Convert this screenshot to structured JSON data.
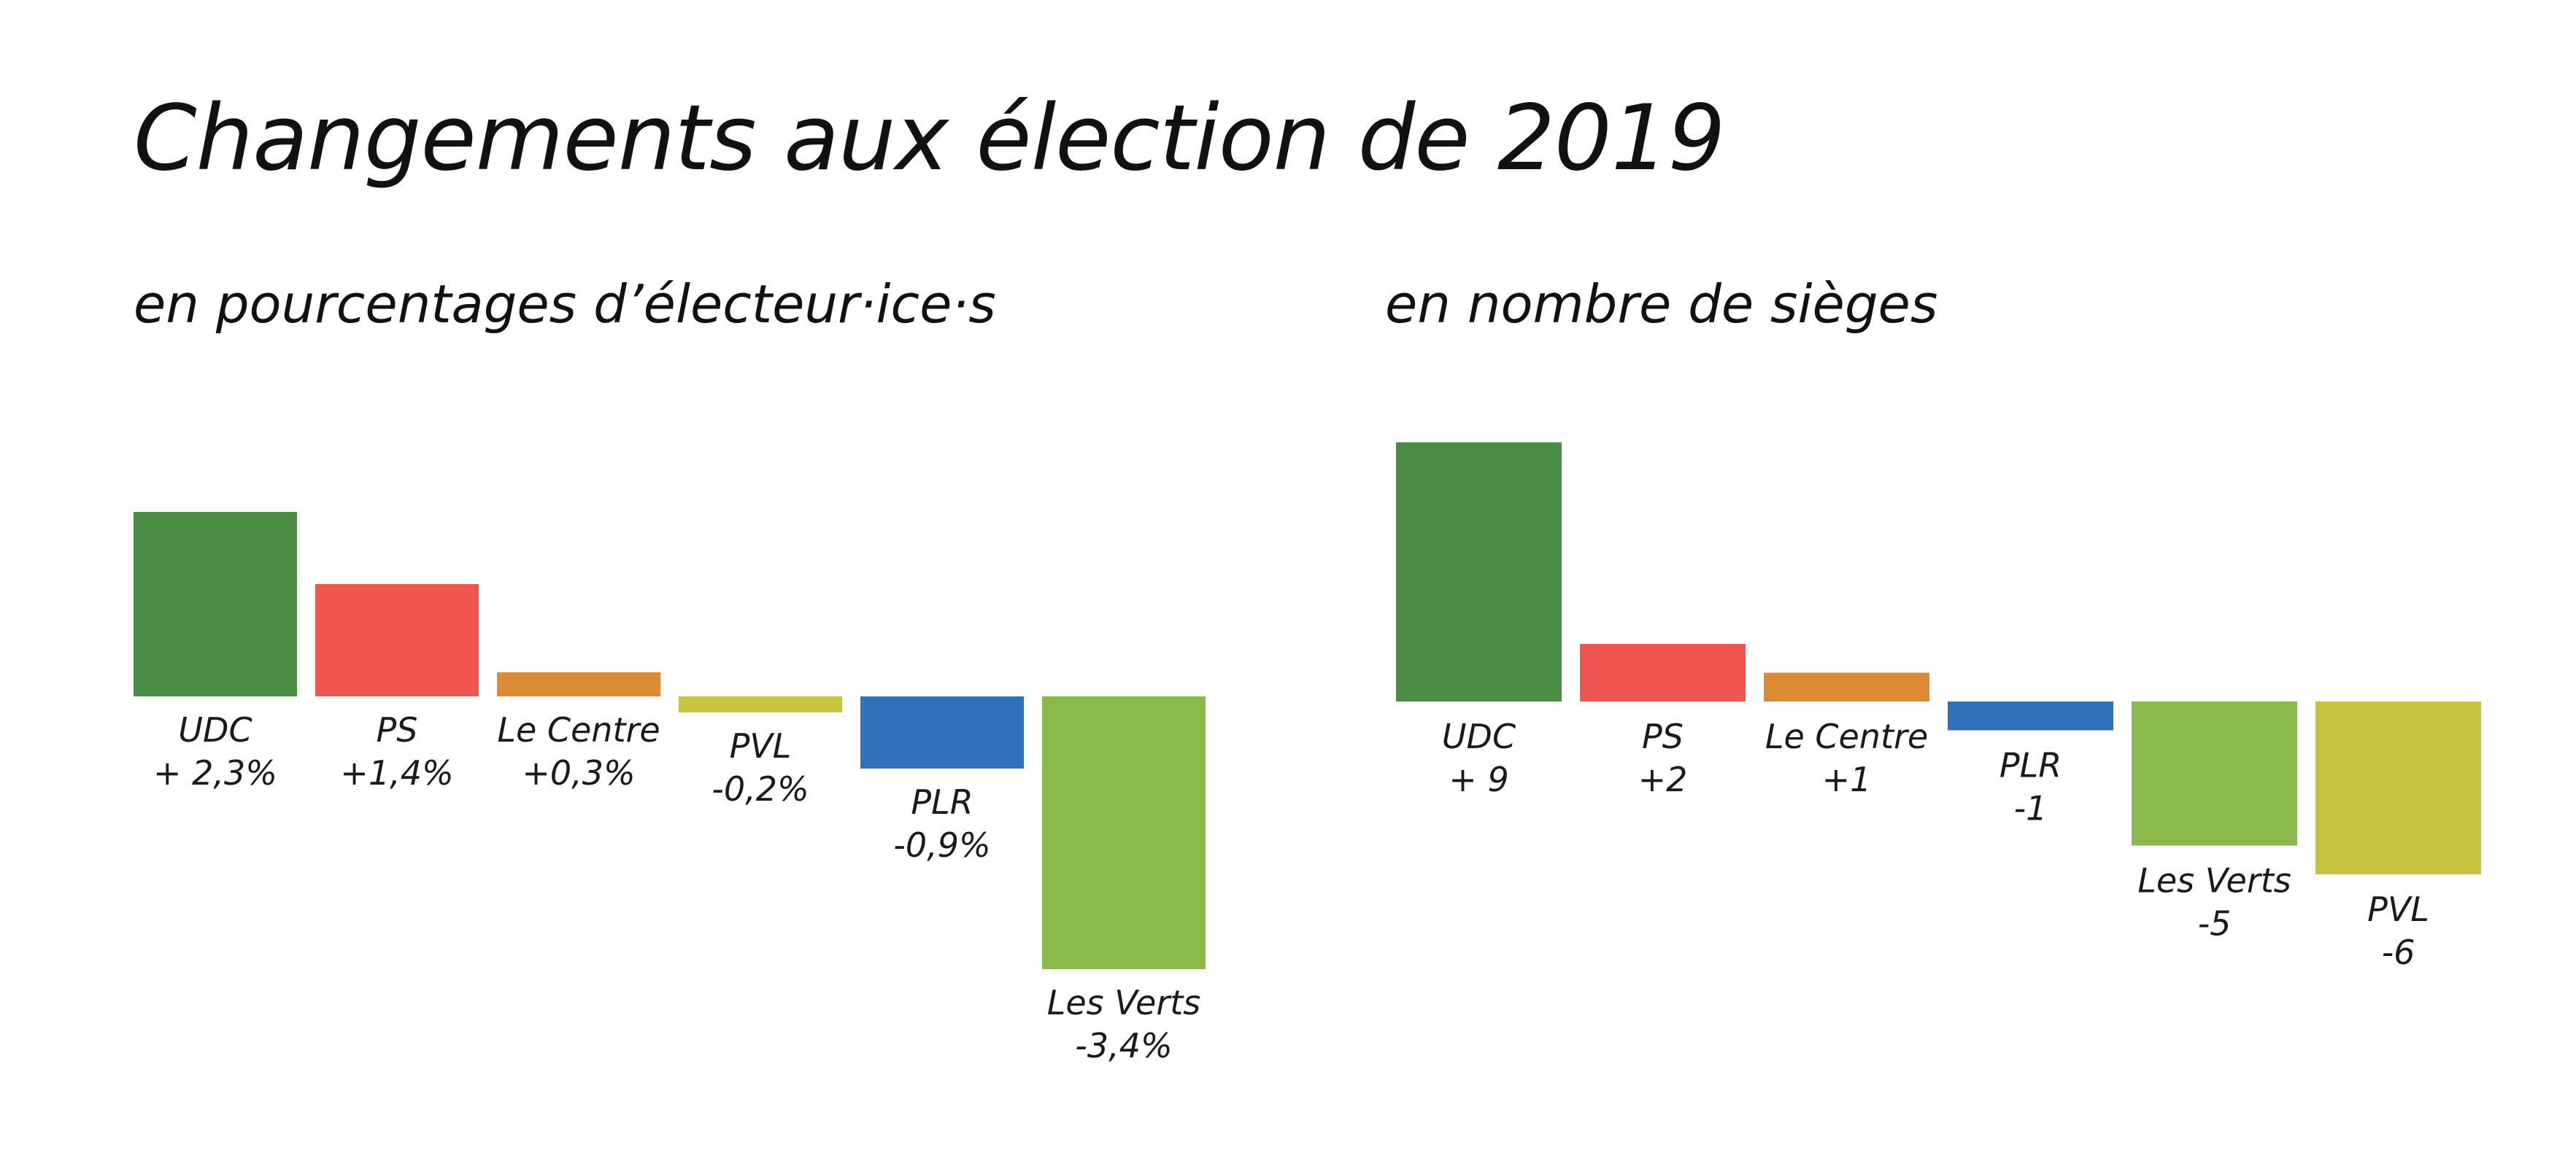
{
  "title": "Changements aux élection de 2019",
  "chart_data": [
    {
      "type": "bar",
      "subtitle": "en pourcentages d’électeur·ice·s",
      "categories": [
        "UDC",
        "PS",
        "Le Centre",
        "PVL",
        "PLR",
        "Les Verts"
      ],
      "values": [
        2.3,
        1.4,
        0.3,
        -0.2,
        -0.9,
        -3.4
      ],
      "value_labels": [
        "+ 2,3%",
        "+1,4%",
        "+0,3%",
        "-0,2%",
        "-0,9%",
        "-3,4%"
      ],
      "colors": [
        "#4a8e44",
        "#f0564f",
        "#dc8a34",
        "#c6c43c",
        "#2f72b9",
        "#89b948"
      ],
      "xlabel": "",
      "ylabel": "",
      "grid": false
    },
    {
      "type": "bar",
      "subtitle": "en nombre de sièges",
      "categories": [
        "UDC",
        "PS",
        "Le Centre",
        "PLR",
        "Les Verts",
        "PVL"
      ],
      "values": [
        9,
        2,
        1,
        -1,
        -5,
        -6
      ],
      "value_labels": [
        "+ 9",
        "+2",
        "+1",
        "-1",
        "-5",
        "-6"
      ],
      "colors": [
        "#4a8e44",
        "#f0564f",
        "#dc8a34",
        "#2f72b9",
        "#89b948",
        "#c6c43c"
      ],
      "xlabel": "",
      "ylabel": "",
      "grid": false
    }
  ]
}
